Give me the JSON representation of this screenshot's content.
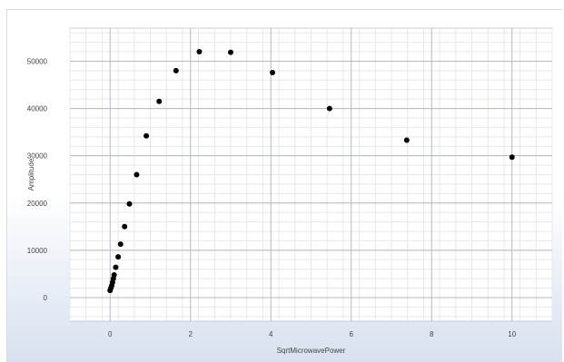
{
  "chart_data": {
    "type": "scatter",
    "title": "",
    "xlabel": "SqrtMicrowavePower",
    "ylabel": "Amplitude",
    "xlim": [
      -1,
      11
    ],
    "ylim": [
      -5000,
      57000
    ],
    "xticks": [
      0,
      2,
      4,
      6,
      8,
      10
    ],
    "xtick_labels": [
      "0",
      "2",
      "4",
      "6",
      "8",
      "10"
    ],
    "yticks": [
      0,
      10000,
      20000,
      30000,
      40000,
      50000
    ],
    "ytick_labels": [
      "0",
      "10000",
      "20000",
      "30000",
      "40000",
      "50000"
    ],
    "grid": true,
    "legend": "none",
    "marker_color": "#000000",
    "series": [
      {
        "x": [
          0.0,
          0.02,
          0.04,
          0.06,
          0.08,
          0.1,
          0.14,
          0.2,
          0.26,
          0.36,
          0.48,
          0.66,
          0.9,
          1.22,
          1.64,
          2.22,
          3.0,
          4.04,
          5.46,
          7.38,
          10.0
        ],
        "y": [
          1500,
          2000,
          2500,
          3200,
          4000,
          4800,
          6400,
          8600,
          11300,
          15000,
          19800,
          26000,
          34200,
          41500,
          48000,
          52000,
          51900,
          47600,
          40000,
          33300,
          29700
        ]
      }
    ]
  }
}
